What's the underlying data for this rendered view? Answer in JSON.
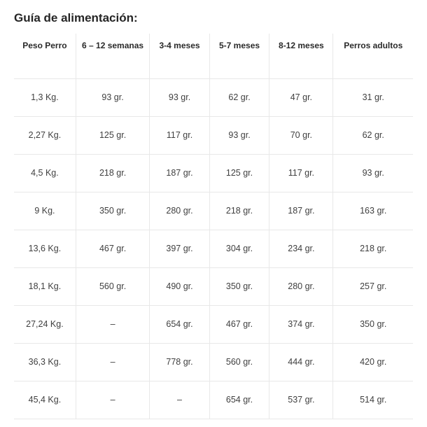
{
  "title": "Guía de alimentación:",
  "table": {
    "columns": [
      "Peso Perro",
      "6 – 12 semanas",
      "3-4 meses",
      "5-7 meses",
      "8-12 meses",
      "Perros adultos"
    ],
    "rows": [
      [
        "1,3 Kg.",
        "93 gr.",
        "93 gr.",
        "62 gr.",
        "47 gr.",
        "31 gr."
      ],
      [
        "2,27 Kg.",
        "125 gr.",
        "117 gr.",
        "93 gr.",
        "70 gr.",
        "62 gr."
      ],
      [
        "4,5 Kg.",
        "218 gr.",
        "187 gr.",
        "125 gr.",
        "117 gr.",
        "93 gr."
      ],
      [
        "9 Kg.",
        "350 gr.",
        "280 gr.",
        "218 gr.",
        "187 gr.",
        "163 gr."
      ],
      [
        "13,6 Kg.",
        "467 gr.",
        "397 gr.",
        "304 gr.",
        "234 gr.",
        "218 gr."
      ],
      [
        "18,1 Kg.",
        "560 gr.",
        "490 gr.",
        "350 gr.",
        "280 gr.",
        "257 gr."
      ],
      [
        "27,24 Kg.",
        "–",
        "654 gr.",
        "467 gr.",
        "374 gr.",
        "350 gr."
      ],
      [
        "36,3 Kg.",
        "–",
        "778 gr.",
        "560 gr.",
        "444 gr.",
        "420 gr."
      ],
      [
        "45,4 Kg.",
        "–",
        "–",
        "654 gr.",
        "537 gr.",
        "514 gr."
      ]
    ]
  }
}
